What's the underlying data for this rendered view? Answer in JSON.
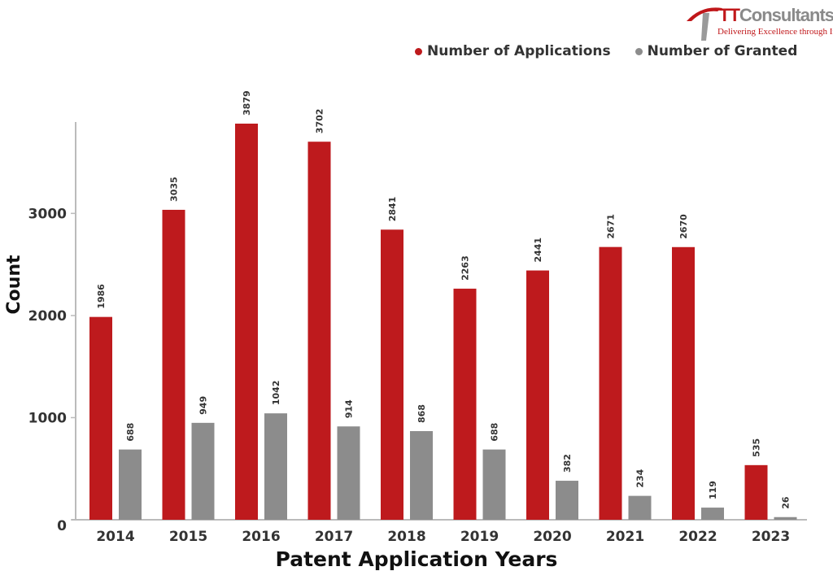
{
  "logo": {
    "brand_prefix": "TT",
    "brand_rest": "Consultants",
    "tagline": "Delivering Excellence through Insights"
  },
  "colors": {
    "applications": "#be1a1d",
    "granted": "#8c8c8c",
    "axis": "#bbbbbb",
    "text": "#333333"
  },
  "chart_data": {
    "type": "bar",
    "xlabel": "Patent Application Years",
    "ylabel": "Count",
    "categories": [
      "2014",
      "2015",
      "2016",
      "2017",
      "2018",
      "2019",
      "2020",
      "2021",
      "2022",
      "2023"
    ],
    "series": [
      {
        "name": "Number of Applications",
        "values": [
          1986,
          3035,
          3879,
          3702,
          2841,
          2263,
          2441,
          2671,
          2670,
          535
        ]
      },
      {
        "name": "Number of Granted",
        "values": [
          688,
          949,
          1042,
          914,
          868,
          688,
          382,
          234,
          119,
          26
        ]
      }
    ],
    "yticks": [
      0,
      1000,
      2000,
      3000
    ],
    "ylim": [
      0,
      3879
    ],
    "legend": "top-right",
    "grid": false,
    "data_labels": true
  }
}
